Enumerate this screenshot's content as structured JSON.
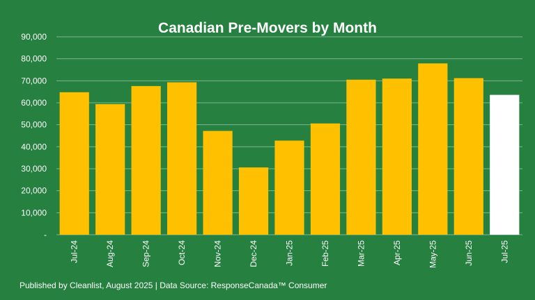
{
  "colors": {
    "background": "#268040",
    "bar": "#FFC000",
    "highlight_bar": "#FFFFFF",
    "grid": "#7FB58F",
    "text": "#FFFFFF"
  },
  "footer": "Published by Cleanlist, August 2025 | Data Source: ResponseCanada™ Consumer",
  "chart_data": {
    "type": "bar",
    "title": "Canadian Pre-Movers by Month",
    "xlabel": "",
    "ylabel": "",
    "categories": [
      "Jul-24",
      "Aug-24",
      "Sep-24",
      "Oct-24",
      "Nov-24",
      "Dec-24",
      "Jan-25",
      "Feb-25",
      "Mar-25",
      "Apr-25",
      "May-25",
      "Jun-25",
      "Jul-25"
    ],
    "values": [
      64800,
      59400,
      67600,
      69300,
      47200,
      30600,
      42800,
      50600,
      70500,
      71000,
      77900,
      71200,
      63600
    ],
    "highlight_index": 12,
    "ylim": [
      0,
      90000
    ],
    "yticks": [
      0,
      10000,
      20000,
      30000,
      40000,
      50000,
      60000,
      70000,
      80000,
      90000
    ],
    "ytick_labels": [
      "-",
      "10,000",
      "20,000",
      "30,000",
      "40,000",
      "50,000",
      "60,000",
      "70,000",
      "80,000",
      "90,000"
    ],
    "grid": true,
    "legend": "none"
  }
}
